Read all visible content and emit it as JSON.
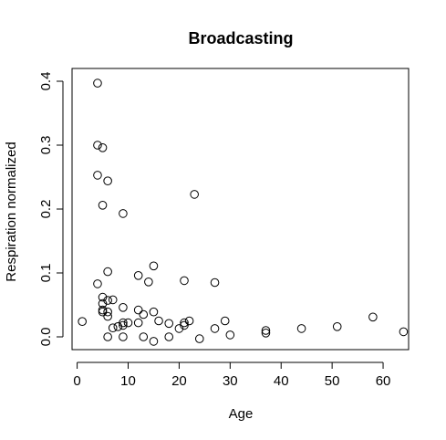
{
  "chart_data": {
    "type": "scatter",
    "title": "Broadcasting",
    "xlabel": "Age",
    "ylabel": "Respiration normalized",
    "xlim": [
      -1,
      65
    ],
    "ylim": [
      -0.02,
      0.42
    ],
    "xticks": [
      0,
      10,
      20,
      30,
      40,
      50,
      60
    ],
    "xtick_labels": [
      "0",
      "10",
      "20",
      "30",
      "40",
      "50",
      "60"
    ],
    "yticks": [
      0.0,
      0.1,
      0.2,
      0.3,
      0.4
    ],
    "ytick_labels": [
      "0.0",
      "0.1",
      "0.2",
      "0.3",
      "0.4"
    ],
    "grid": false,
    "legend": "none",
    "points": [
      {
        "x": 1,
        "y": 0.024
      },
      {
        "x": 4,
        "y": 0.397
      },
      {
        "x": 4,
        "y": 0.3
      },
      {
        "x": 4,
        "y": 0.253
      },
      {
        "x": 4,
        "y": 0.083
      },
      {
        "x": 5,
        "y": 0.296
      },
      {
        "x": 5,
        "y": 0.206
      },
      {
        "x": 5,
        "y": 0.062
      },
      {
        "x": 5,
        "y": 0.052
      },
      {
        "x": 5,
        "y": 0.042
      },
      {
        "x": 5,
        "y": 0.039
      },
      {
        "x": 6,
        "y": 0.244
      },
      {
        "x": 6,
        "y": 0.102
      },
      {
        "x": 6,
        "y": 0.057
      },
      {
        "x": 6,
        "y": 0.039
      },
      {
        "x": 6,
        "y": 0.032
      },
      {
        "x": 6,
        "y": 0.0
      },
      {
        "x": 7,
        "y": 0.058
      },
      {
        "x": 7,
        "y": 0.014
      },
      {
        "x": 8,
        "y": 0.016
      },
      {
        "x": 9,
        "y": 0.193
      },
      {
        "x": 9,
        "y": 0.046
      },
      {
        "x": 9,
        "y": 0.022
      },
      {
        "x": 9,
        "y": 0.018
      },
      {
        "x": 9,
        "y": 0.0
      },
      {
        "x": 10,
        "y": 0.022
      },
      {
        "x": 12,
        "y": 0.096
      },
      {
        "x": 12,
        "y": 0.042
      },
      {
        "x": 12,
        "y": 0.022
      },
      {
        "x": 13,
        "y": 0.035
      },
      {
        "x": 13,
        "y": 0.0
      },
      {
        "x": 14,
        "y": 0.086
      },
      {
        "x": 15,
        "y": 0.111
      },
      {
        "x": 15,
        "y": 0.039
      },
      {
        "x": 15,
        "y": -0.007
      },
      {
        "x": 16,
        "y": 0.025
      },
      {
        "x": 18,
        "y": 0.021
      },
      {
        "x": 18,
        "y": 0.0
      },
      {
        "x": 20,
        "y": 0.013
      },
      {
        "x": 21,
        "y": 0.088
      },
      {
        "x": 21,
        "y": 0.022
      },
      {
        "x": 21,
        "y": 0.018
      },
      {
        "x": 22,
        "y": 0.025
      },
      {
        "x": 23,
        "y": 0.223
      },
      {
        "x": 24,
        "y": -0.003
      },
      {
        "x": 27,
        "y": 0.085
      },
      {
        "x": 27,
        "y": 0.013
      },
      {
        "x": 29,
        "y": 0.025
      },
      {
        "x": 30,
        "y": 0.003
      },
      {
        "x": 37,
        "y": 0.01
      },
      {
        "x": 37,
        "y": 0.006
      },
      {
        "x": 44,
        "y": 0.013
      },
      {
        "x": 51,
        "y": 0.016
      },
      {
        "x": 58,
        "y": 0.031
      },
      {
        "x": 64,
        "y": 0.008
      }
    ]
  }
}
